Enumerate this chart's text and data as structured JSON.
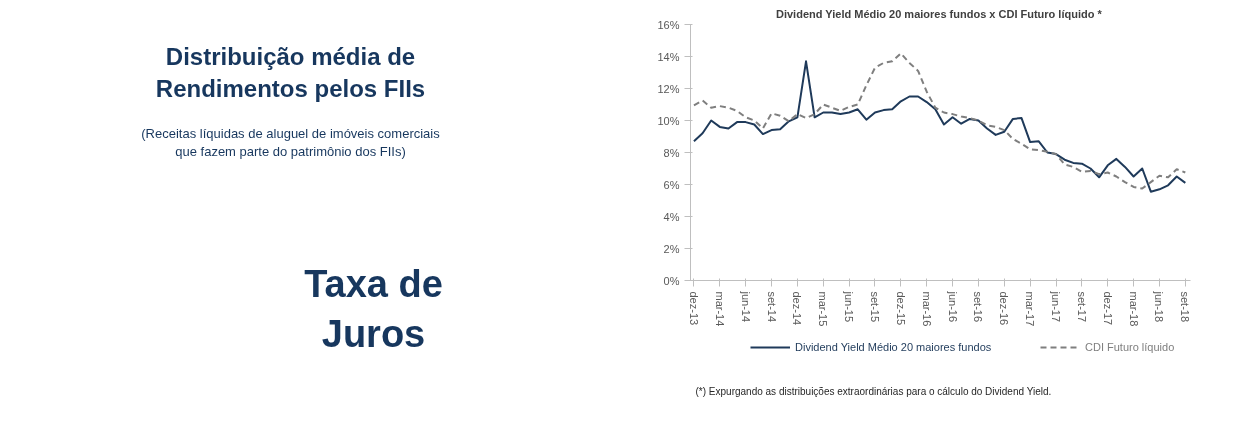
{
  "chart_data": {
    "type": "line",
    "title": "Dividend Yield Médio 20 maiores fundos x  CDI Futuro líquido *",
    "categories": [
      "dez-13",
      null,
      null,
      "mar-14",
      null,
      null,
      "jun-14",
      null,
      null,
      "set-14",
      null,
      null,
      "dez-14",
      null,
      null,
      "mar-15",
      null,
      null,
      "jun-15",
      null,
      null,
      "set-15",
      null,
      null,
      "dez-15",
      null,
      null,
      "mar-16",
      null,
      null,
      "jun-16",
      null,
      null,
      "set-16",
      null,
      null,
      "dez-16",
      null,
      null,
      "mar-17",
      null,
      null,
      "jun-17",
      null,
      null,
      "set-17",
      null,
      null,
      "dez-17",
      null,
      null,
      "mar-18",
      null,
      null,
      "jun-18",
      null,
      null,
      "set-18"
    ],
    "series": [
      {
        "name": "Dividend Yield Médio 20 maiores fundos",
        "color": "#1f3a5a",
        "line_style": "solid",
        "values": [
          8.7,
          9.2,
          10.0,
          9.6,
          9.5,
          9.9,
          9.9,
          9.75,
          9.15,
          9.4,
          9.45,
          9.95,
          10.2,
          13.7,
          10.2,
          10.5,
          10.5,
          10.4,
          10.5,
          10.7,
          10.05,
          10.5,
          10.65,
          10.7,
          11.2,
          11.5,
          11.5,
          11.15,
          10.7,
          9.75,
          10.2,
          9.8,
          10.1,
          10.0,
          9.5,
          9.1,
          9.3,
          10.1,
          10.15,
          8.65,
          8.7,
          8.0,
          7.9,
          7.55,
          7.35,
          7.3,
          7.0,
          6.45,
          7.2,
          7.6,
          7.1,
          6.5,
          7.0,
          5.55,
          5.7,
          5.95,
          6.5,
          6.1
        ]
      },
      {
        "name": "CDI Futuro líquido",
        "color": "#7f7f7f",
        "line_style": "dashed",
        "values": [
          10.95,
          11.25,
          10.8,
          10.9,
          10.8,
          10.6,
          10.2,
          10.0,
          9.5,
          10.45,
          10.3,
          9.95,
          10.4,
          10.15,
          10.4,
          11.0,
          10.8,
          10.6,
          10.85,
          11.0,
          12.2,
          13.3,
          13.6,
          13.7,
          14.2,
          13.6,
          13.1,
          11.8,
          10.8,
          10.5,
          10.4,
          10.25,
          10.15,
          10.0,
          9.7,
          9.6,
          9.4,
          8.85,
          8.55,
          8.2,
          8.15,
          8.05,
          7.9,
          7.25,
          7.1,
          6.8,
          6.85,
          6.65,
          6.75,
          6.5,
          6.15,
          5.85,
          5.75,
          6.15,
          6.55,
          6.45,
          6.95,
          6.75
        ]
      }
    ],
    "ylim": [
      0,
      16
    ],
    "yticks": [
      {
        "value": 0,
        "label": "0%"
      },
      {
        "value": 2,
        "label": "2%"
      },
      {
        "value": 4,
        "label": "4%"
      },
      {
        "value": 6,
        "label": "6%"
      },
      {
        "value": 8,
        "label": "8%"
      },
      {
        "value": 10,
        "label": "10%"
      },
      {
        "value": 12,
        "label": "12%"
      },
      {
        "value": 14,
        "label": "14%"
      },
      {
        "value": 16,
        "label": "16%"
      }
    ],
    "grid": false,
    "legend": "bottom",
    "marker": "none",
    "annotations": [
      "Distribuição média de\nRendimentos pelos FIIs",
      "(Receitas líquidas de aluguel de imóveis comerciais\nque fazem parte do patrimônio dos FIIs)",
      "Taxa de\nJuros",
      "(*) Expurgando as distribuições extraordinárias para o cálculo do Dividend Yield."
    ]
  }
}
